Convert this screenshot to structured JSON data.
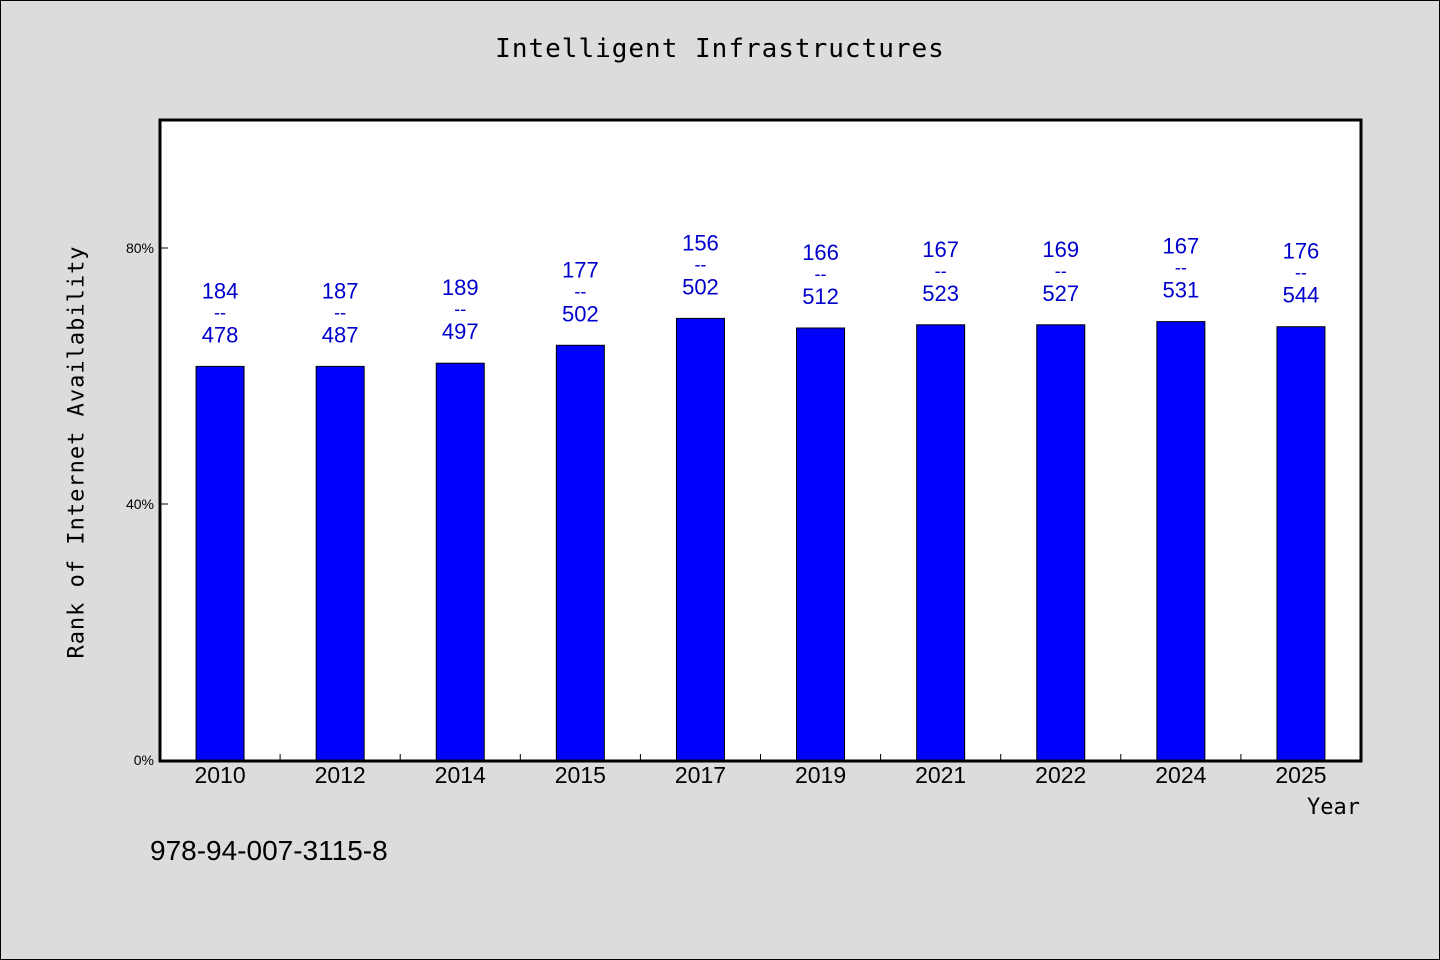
{
  "chart_data": {
    "type": "bar",
    "title": "Intelligent Infrastructures",
    "xlabel": "Year",
    "ylabel": "Rank of Internet Availability",
    "ylim": [
      0,
      100
    ],
    "yticks": [
      {
        "value": 0,
        "label": "0%"
      },
      {
        "value": 40,
        "label": "40%"
      },
      {
        "value": 80,
        "label": "80%"
      }
    ],
    "categories": [
      "2010",
      "2012",
      "2014",
      "2015",
      "2017",
      "2019",
      "2021",
      "2022",
      "2024",
      "2025"
    ],
    "values": [
      61.5,
      61.5,
      62.0,
      64.8,
      69.0,
      67.5,
      68.0,
      68.0,
      68.5,
      67.7
    ],
    "rank": [
      "184",
      "187",
      "189",
      "177",
      "156",
      "166",
      "167",
      "169",
      "167",
      "176"
    ],
    "total": [
      "478",
      "487",
      "497",
      "502",
      "502",
      "512",
      "523",
      "527",
      "531",
      "544"
    ],
    "separator": "--",
    "bar_color": "#0000ff",
    "label_color": "#0000cc",
    "grid": false
  },
  "footnote": "978-94-007-3115-8"
}
